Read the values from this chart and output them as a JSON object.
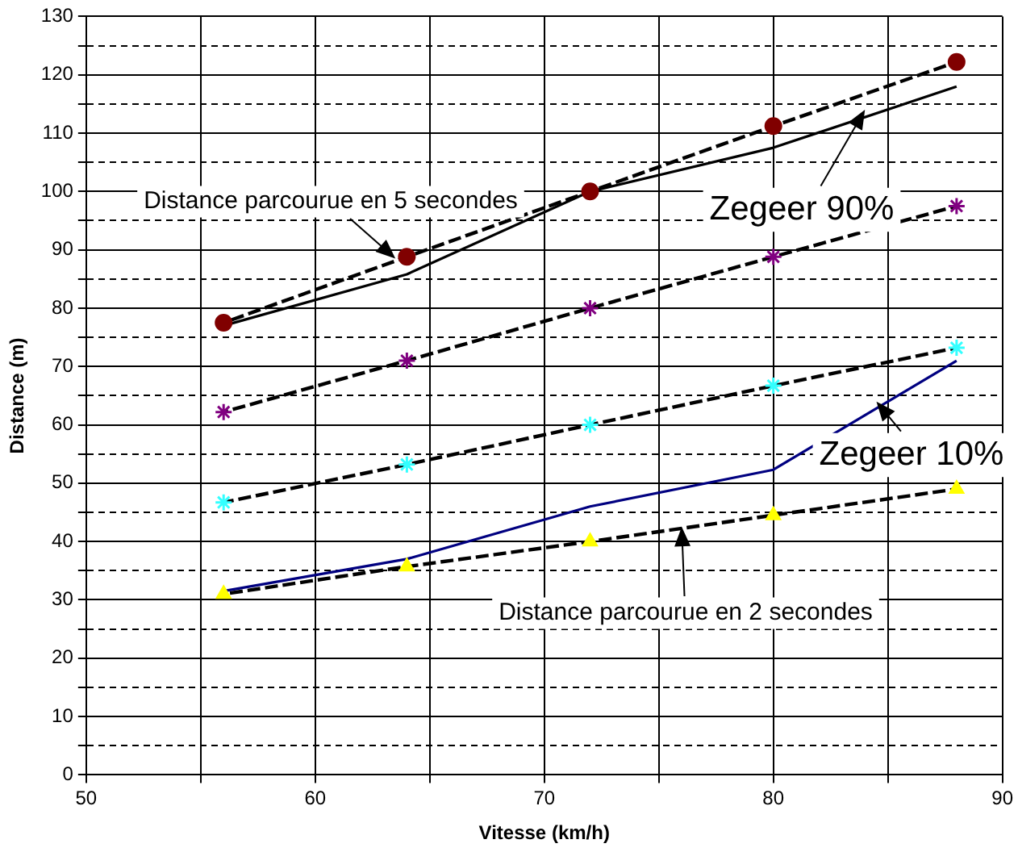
{
  "chart_data": {
    "type": "line",
    "xlabel": "Vitesse (km/h)",
    "ylabel": "Distance (m)",
    "xlim": [
      50,
      90
    ],
    "xticks": [
      50,
      {
        "value": 55,
        "label": null
      },
      60,
      {
        "value": 65,
        "label": null
      },
      70,
      {
        "value": 75,
        "label": null
      },
      80,
      {
        "value": 85,
        "label": null
      },
      90
    ],
    "ylim": [
      0,
      130
    ],
    "yticks": [
      0,
      {
        "value": 5,
        "label": null
      },
      10,
      {
        "value": 15,
        "label": null
      },
      20,
      {
        "value": 25,
        "label": null
      },
      30,
      {
        "value": 35,
        "label": null
      },
      40,
      {
        "value": 45,
        "label": null
      },
      50,
      {
        "value": 55,
        "label": null
      },
      60,
      {
        "value": 65,
        "label": null
      },
      70,
      {
        "value": 75,
        "label": null
      },
      80,
      {
        "value": 85,
        "label": null
      },
      90,
      {
        "value": 95,
        "label": null
      },
      100,
      {
        "value": 105,
        "label": null
      },
      110,
      {
        "value": 115,
        "label": null
      },
      120,
      {
        "value": 125,
        "label": null
      },
      130
    ],
    "grid": true,
    "legend": false,
    "x": [
      56,
      64,
      72,
      80,
      88
    ],
    "series": [
      {
        "color": "#800000",
        "marker": "circle",
        "line_style": "dashed",
        "values": [
          77.5,
          88.8,
          100,
          111.2,
          122.2
        ]
      },
      {
        "color": "#000000",
        "marker": "none",
        "line_style": "solid",
        "values": [
          77,
          85.8,
          100,
          107.5,
          118
        ]
      },
      {
        "color": "#800080",
        "marker": "cross",
        "line_style": "dashed",
        "values": [
          62.2,
          71,
          80,
          88.8,
          97.5
        ]
      },
      {
        "color": "#33ffff",
        "marker": "cross",
        "line_style": "dashed",
        "values": [
          46.7,
          53.2,
          60,
          66.7,
          73.2
        ]
      },
      {
        "color": "#000080",
        "marker": "none",
        "line_style": "solid",
        "values": [
          31.5,
          37,
          46,
          52.3,
          71
        ]
      },
      {
        "color": "#ffff00",
        "marker": "triangle",
        "line_style": "dashed",
        "values": [
          31,
          35.7,
          40,
          44.5,
          49
        ]
      }
    ],
    "annotations": [
      {
        "text": "Distance parcourue en 5 secondes",
        "x": 63.5,
        "y": 88.5
      },
      {
        "text": "Zegeer 90%",
        "x": 84,
        "y": 114
      },
      {
        "text": "Zegeer 10%",
        "x": 84.5,
        "y": 64
      },
      {
        "text": "Distance parcourue en 2 secondes",
        "x": 76,
        "y": 42.5
      }
    ]
  }
}
